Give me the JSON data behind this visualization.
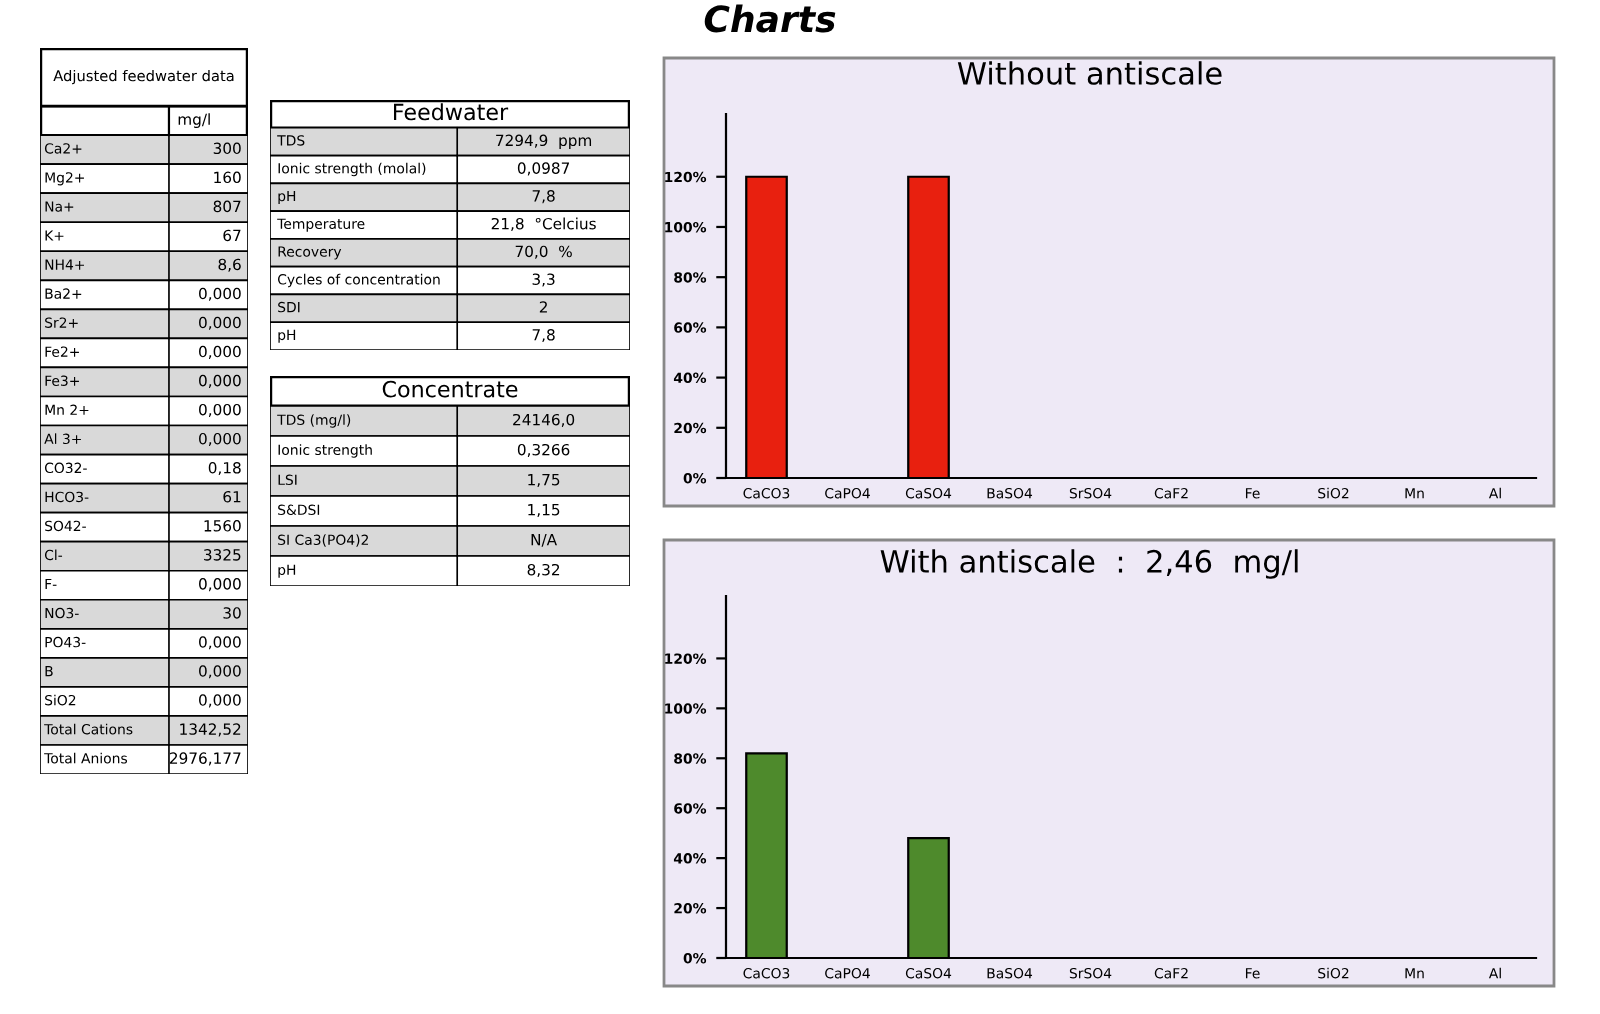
{
  "chart_data": [
    {
      "type": "other",
      "title": "Adjusted feedwater data",
      "subtitle": "mg/l",
      "annotations": [
        "Ca2+",
        "300",
        "Mg2+",
        "160",
        "Na+",
        "807",
        "K+",
        "67",
        "NH4+",
        "8,6",
        "Ba2+",
        "0,000",
        "Sr2+",
        "0,000",
        "Fe2+",
        "0,000",
        "Fe3+",
        "0,000",
        "Mn 2+",
        "0,000",
        "Al 3+",
        "0,000",
        "CO32-",
        "0,18",
        "HCO3-",
        "61",
        "SO42-",
        "1560",
        "Cl-",
        "3325",
        "F-",
        "0,000",
        "NO3-",
        "30",
        "PO43-",
        "0,000",
        "B",
        "0,000",
        "SiO2",
        "0,000",
        "Total Cations",
        "1342,52",
        "Total Anions",
        "2976,177"
      ]
    },
    {
      "type": "other",
      "title": "Feedwater",
      "annotations": [
        "TDS",
        "7294,9  ppm",
        "Ionic strength (molal)",
        "0,0987",
        "pH",
        "7,8",
        "Temperature",
        "21,8  °Celcius",
        "Recovery",
        "70,0  %",
        "Cycles of concentration",
        "3,3",
        "SDI",
        "2",
        "pH",
        "7,8"
      ]
    },
    {
      "type": "other",
      "title": "Concentrate",
      "annotations": [
        "TDS (mg/l)",
        "24146,0",
        "Ionic strength",
        "0,3266",
        "LSI",
        "1,75",
        "S&DSI",
        "1,15",
        "SI Ca3(PO4)2",
        "N/A",
        "pH",
        "8,32"
      ]
    },
    {
      "type": "bar",
      "title": "Charts",
      "subtitle": "Without antiscale",
      "categories": [
        "CaCO3",
        "CaPO4",
        "CaSO4",
        "BaSO4",
        "SrSO4",
        "CaF2",
        "Fe",
        "SiO2",
        "Mn",
        "Al"
      ],
      "values": [
        120,
        0,
        120,
        0,
        0,
        0,
        0,
        0,
        0,
        0
      ],
      "color": "#e8200f",
      "ylim": [
        0,
        145
      ],
      "yticks": [
        {
          "value": 0,
          "label": "0%"
        },
        {
          "value": 20,
          "label": "20%"
        },
        {
          "value": 40,
          "label": "40%"
        },
        {
          "value": 60,
          "label": "60%"
        },
        {
          "value": 80,
          "label": "80%"
        },
        {
          "value": 100,
          "label": "100%"
        },
        {
          "value": 120,
          "label": "120%"
        }
      ],
      "grid": false,
      "legend": false
    },
    {
      "type": "bar",
      "title": "With antiscale  :  2,46  mg/l",
      "categories": [
        "CaCO3",
        "CaPO4",
        "CaSO4",
        "BaSO4",
        "SrSO4",
        "CaF2",
        "Fe",
        "SiO2",
        "Mn",
        "Al"
      ],
      "values": [
        82,
        0,
        48,
        0,
        0,
        0,
        0,
        0,
        0,
        0
      ],
      "color": "#4e8a2c",
      "ylim": [
        0,
        145
      ],
      "yticks": [
        {
          "value": 0,
          "label": "0%"
        },
        {
          "value": 20,
          "label": "20%"
        },
        {
          "value": 40,
          "label": "40%"
        },
        {
          "value": 60,
          "label": "60%"
        },
        {
          "value": 80,
          "label": "80%"
        },
        {
          "value": 100,
          "label": "100%"
        },
        {
          "value": 120,
          "label": "120%"
        }
      ],
      "grid": false,
      "legend": false
    }
  ]
}
